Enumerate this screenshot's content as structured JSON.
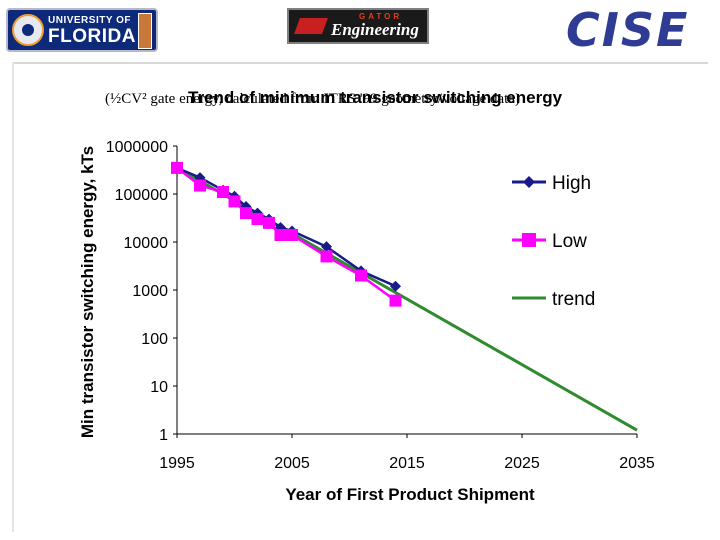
{
  "header": {
    "uf_logo_line1": "UNIVERSITY OF",
    "uf_logo_line2": "FLORIDA",
    "eng_logo_small": "GATOR",
    "eng_logo_big": "Engineering",
    "cise_logo": "CISE"
  },
  "chart_data": {
    "type": "line",
    "title": "Trend of minimum transistor switching energy",
    "subtitle": "(½CV² gate energy, calculated from ITRS '99 geometry/voltage data)",
    "xlabel": "Year of First Product Shipment",
    "ylabel": "Min transistor switching energy, kTs",
    "yscale": "log",
    "xlim": [
      1995,
      2035
    ],
    "ylim": [
      1,
      1000000
    ],
    "x_ticks": [
      "1995",
      "2005",
      "2015",
      "2025",
      "2035"
    ],
    "y_ticks": [
      "1",
      "10",
      "100",
      "1000",
      "10000",
      "100000",
      "1000000"
    ],
    "legend_position": "right",
    "series": [
      {
        "name": "High",
        "color": "#1a1a8a",
        "marker": "diamond",
        "x": [
          1995,
          1997,
          1999,
          2000,
          2001,
          2002,
          2003,
          2004,
          2005,
          2008,
          2011,
          2014
        ],
        "y": [
          350000,
          220000,
          120000,
          90000,
          55000,
          40000,
          30000,
          20000,
          17000,
          8000,
          2500,
          1200
        ]
      },
      {
        "name": "Low",
        "color": "#ff00ff",
        "marker": "square",
        "x": [
          1995,
          1997,
          1999,
          2000,
          2001,
          2002,
          2003,
          2004,
          2005,
          2008,
          2011,
          2014
        ],
        "y": [
          350000,
          150000,
          110000,
          70000,
          40000,
          30000,
          25000,
          14000,
          14000,
          5000,
          2000,
          600
        ]
      },
      {
        "name": "trend",
        "color": "#2e8b2e",
        "marker": "none",
        "x": [
          1995,
          2035
        ],
        "y": [
          350000,
          1.2
        ]
      }
    ]
  }
}
